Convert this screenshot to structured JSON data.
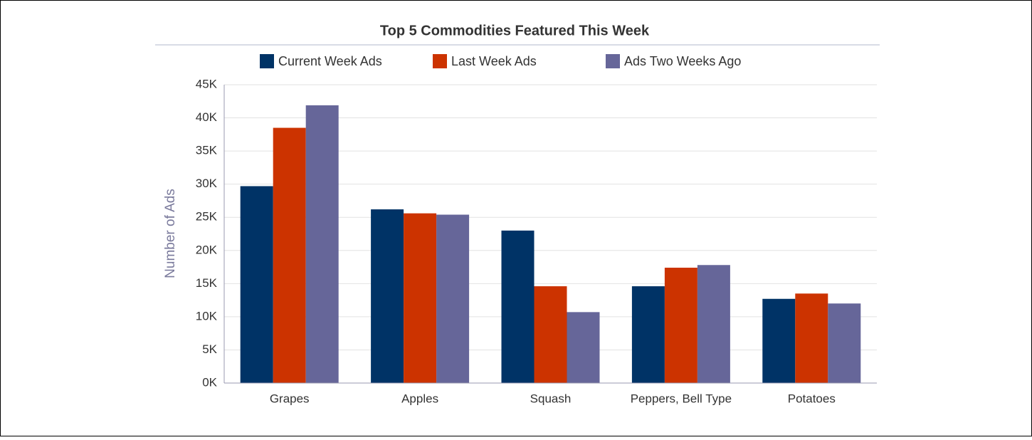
{
  "chart_data": {
    "type": "bar",
    "title": "Top 5 Commodities Featured This Week",
    "y_label": "Number of Ads",
    "categories": [
      "Grapes",
      "Apples",
      "Squash",
      "Peppers, Bell Type",
      "Potatoes"
    ],
    "series": [
      {
        "name": "Current Week Ads",
        "color": "#003366",
        "values": [
          29700,
          26200,
          23000,
          14600,
          12700
        ]
      },
      {
        "name": "Last Week Ads",
        "color": "#cc3300",
        "values": [
          38500,
          25600,
          14600,
          17400,
          13500
        ]
      },
      {
        "name": "Ads Two Weeks Ago",
        "color": "#666699",
        "values": [
          41900,
          25400,
          10700,
          17800,
          12000
        ]
      }
    ],
    "ylim": [
      0,
      45000
    ],
    "yticks": [
      {
        "value": 0,
        "label": "0K"
      },
      {
        "value": 5000,
        "label": "5K"
      },
      {
        "value": 10000,
        "label": "10K"
      },
      {
        "value": 15000,
        "label": "15K"
      },
      {
        "value": 20000,
        "label": "20K"
      },
      {
        "value": 25000,
        "label": "25K"
      },
      {
        "value": 30000,
        "label": "30K"
      },
      {
        "value": 35000,
        "label": "35K"
      },
      {
        "value": 40000,
        "label": "40K"
      },
      {
        "value": 45000,
        "label": "45K"
      }
    ],
    "grid": true,
    "legend": "top"
  }
}
